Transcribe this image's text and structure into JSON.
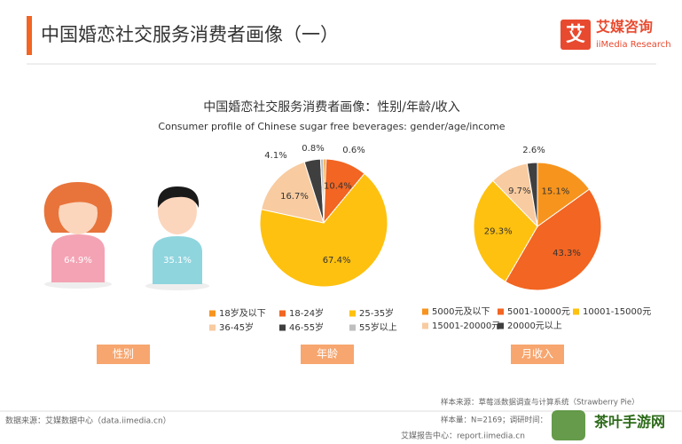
{
  "header": {
    "title": "中国婚恋社交服务消费者画像（一）",
    "logo_icon": "艾",
    "logo_cn": "艾媒咨询",
    "logo_en": "iiMedia Research"
  },
  "chart_title": "中国婚恋社交服务消费者画像：性别/年龄/收入",
  "chart_subtitle": "Consumer profile of Chinese sugar free beverages: gender/age/income",
  "chart_data": [
    {
      "type": "pictogram",
      "values": [
        64.9,
        35.1
      ],
      "value_labels": [
        "64.9%",
        "35.1%"
      ],
      "colors": [
        "#f4a3b4",
        "#8fd5de"
      ],
      "label": "性别"
    },
    {
      "type": "pie",
      "categories": [
        "18岁及以下",
        "18-24岁",
        "25-35岁",
        "36-45岁",
        "46-55岁",
        "55岁以上"
      ],
      "values": [
        0.6,
        10.4,
        67.4,
        16.7,
        4.1,
        0.8
      ],
      "value_labels": [
        "0.6%",
        "10.4%",
        "67.4%",
        "16.7%",
        "4.1%",
        "0.8%"
      ],
      "colors": [
        "#f7941d",
        "#f26522",
        "#fec10f",
        "#f8cba0",
        "#3f3f3f",
        "#bfbfbf"
      ],
      "label": "年龄"
    },
    {
      "type": "pie",
      "categories": [
        "5000元及以下",
        "5001-10000元",
        "10001-15000元",
        "15001-20000元",
        "20000元以上"
      ],
      "values": [
        15.1,
        43.3,
        29.3,
        9.7,
        2.6
      ],
      "value_labels": [
        "15.1%",
        "43.3%",
        "29.3%",
        "9.7%",
        "2.6%"
      ],
      "colors": [
        "#f7941d",
        "#f26522",
        "#fec10f",
        "#f8cba0",
        "#3f3f3f"
      ],
      "label": "月收入"
    }
  ],
  "footer": {
    "source": "数据来源：艾媒数据中心（data.iimedia.cn）",
    "sample_source": "样本来源：草莓派数据调查与计算系统（Strawberry Pie）",
    "sample_size": "样本量：N=2169；调研时间：",
    "report": "艾媒报告中心：report.iimedia.cn",
    "watermark": "茶叶手游网"
  }
}
